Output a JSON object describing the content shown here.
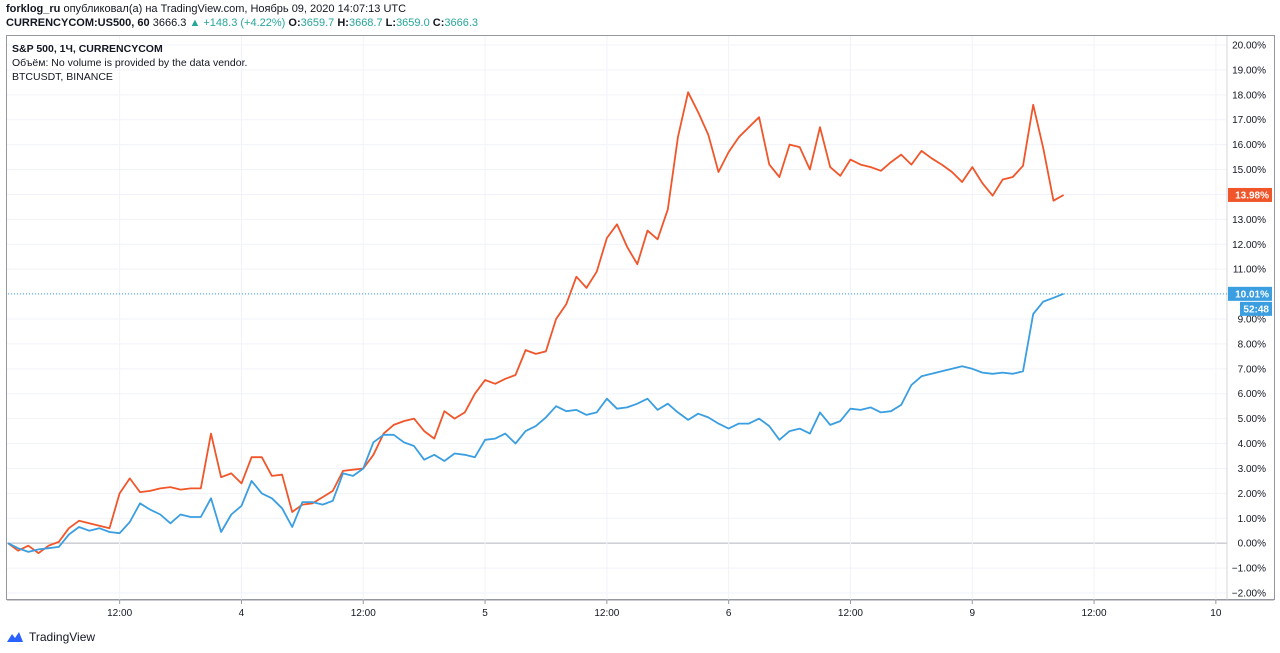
{
  "header": {
    "author": "forklog_ru",
    "published_text": "опубликовал(а) на TradingView.com, Ноябрь 09, 2020 14:07:13 UTC",
    "symbol": "CURRENCYCOM:US500, 60",
    "last": "3666.3",
    "change": "▲ +148.3 (+4.22%)",
    "o_label": "O:",
    "o": "3659.7",
    "h_label": "H:",
    "h": "3668.7",
    "l_label": "L:",
    "l": "3659.0",
    "c_label": "C:",
    "c": "3666.3"
  },
  "legend": {
    "main": "S&P 500, 1Ч, CURRENCYCOM",
    "volume": "Объём: No volume is provided by the data vendor.",
    "compare": "BTCUSDT, BINANCE"
  },
  "branding": "TradingView",
  "colors": {
    "btc": "#f0562a",
    "sp500": "#3a9ee0",
    "grid": "#f0f3fa",
    "zero_line": "#b2b5be",
    "frame": "#9598a1"
  },
  "chart_data": {
    "type": "line",
    "xlabel": "",
    "ylabel": "",
    "ylim": [
      -2,
      20
    ],
    "y_ticks": [
      "20.00%",
      "19.00%",
      "18.00%",
      "17.00%",
      "16.00%",
      "15.00%",
      "14.00%",
      "13.00%",
      "12.00%",
      "11.00%",
      "10.00%",
      "9.00%",
      "8.00%",
      "7.00%",
      "6.00%",
      "5.00%",
      "4.00%",
      "3.00%",
      "2.00%",
      "1.00%",
      "0.00%",
      "−1.00%",
      "−2.00%"
    ],
    "x_ticks": [
      {
        "label": "12:00",
        "x": 11
      },
      {
        "label": "4",
        "x": 23
      },
      {
        "label": "12:00",
        "x": 35
      },
      {
        "label": "5",
        "x": 47
      },
      {
        "label": "12:00",
        "x": 59
      },
      {
        "label": "6",
        "x": 71
      },
      {
        "label": "12:00",
        "x": 83
      },
      {
        "label": "9",
        "x": 95
      },
      {
        "label": "12:00",
        "x": 107
      },
      {
        "label": "10",
        "x": 119
      }
    ],
    "x_range": [
      0,
      120
    ],
    "series": [
      {
        "name": "BTCUSDT, BINANCE",
        "color": "#f0562a",
        "last_label": "13.98%",
        "values": [
          0,
          -0.3,
          -0.1,
          -0.4,
          -0.1,
          0.05,
          0.6,
          0.9,
          0.8,
          0.7,
          0.6,
          2.0,
          2.6,
          2.05,
          2.1,
          2.2,
          2.25,
          2.15,
          2.2,
          2.2,
          4.4,
          2.65,
          2.8,
          2.4,
          3.45,
          3.45,
          2.7,
          2.75,
          1.25,
          1.55,
          1.6,
          1.85,
          2.1,
          2.9,
          2.95,
          3.0,
          3.55,
          4.4,
          4.75,
          4.9,
          5.0,
          4.5,
          4.2,
          5.3,
          5.0,
          5.25,
          6.0,
          6.55,
          6.4,
          6.6,
          6.75,
          7.75,
          7.6,
          7.7,
          9.0,
          9.6,
          10.7,
          10.25,
          10.9,
          12.25,
          12.8,
          11.9,
          11.2,
          12.55,
          12.2,
          13.4,
          16.3,
          18.1,
          17.3,
          16.4,
          14.9,
          15.7,
          16.3,
          16.7,
          17.1,
          15.2,
          14.7,
          16.0,
          15.9,
          15.0,
          16.7,
          15.1,
          14.75,
          15.4,
          15.2,
          15.1,
          14.95,
          15.3,
          15.6,
          15.2,
          15.75,
          15.45,
          15.2,
          14.9,
          14.5,
          15.1,
          14.45,
          13.95,
          14.6,
          14.7,
          15.15,
          17.6,
          15.85,
          13.75,
          13.98
        ]
      },
      {
        "name": "S&P 500, 1Ч, CURRENCYCOM",
        "color": "#3a9ee0",
        "last_label": "10.01%",
        "time_label": "52:48",
        "values": [
          0,
          -0.2,
          -0.35,
          -0.25,
          -0.2,
          -0.15,
          0.35,
          0.65,
          0.5,
          0.6,
          0.45,
          0.4,
          0.85,
          1.6,
          1.35,
          1.15,
          0.8,
          1.15,
          1.05,
          1.05,
          1.8,
          0.45,
          1.15,
          1.5,
          2.5,
          2.0,
          1.8,
          1.4,
          0.65,
          1.65,
          1.65,
          1.55,
          1.7,
          2.8,
          2.7,
          3.0,
          4.05,
          4.35,
          4.35,
          4.05,
          3.9,
          3.35,
          3.55,
          3.3,
          3.6,
          3.55,
          3.45,
          4.15,
          4.2,
          4.4,
          4.0,
          4.5,
          4.7,
          5.05,
          5.5,
          5.3,
          5.35,
          5.15,
          5.25,
          5.8,
          5.4,
          5.45,
          5.6,
          5.8,
          5.35,
          5.6,
          5.25,
          4.95,
          5.2,
          5.05,
          4.8,
          4.6,
          4.8,
          4.8,
          5.0,
          4.7,
          4.15,
          4.5,
          4.6,
          4.4,
          5.25,
          4.75,
          4.9,
          5.4,
          5.35,
          5.45,
          5.25,
          5.3,
          5.55,
          6.35,
          6.7,
          6.8,
          6.9,
          7.0,
          7.1,
          7.0,
          6.85,
          6.8,
          6.85,
          6.8,
          6.9,
          9.2,
          9.7,
          9.85,
          10.01
        ]
      }
    ]
  }
}
